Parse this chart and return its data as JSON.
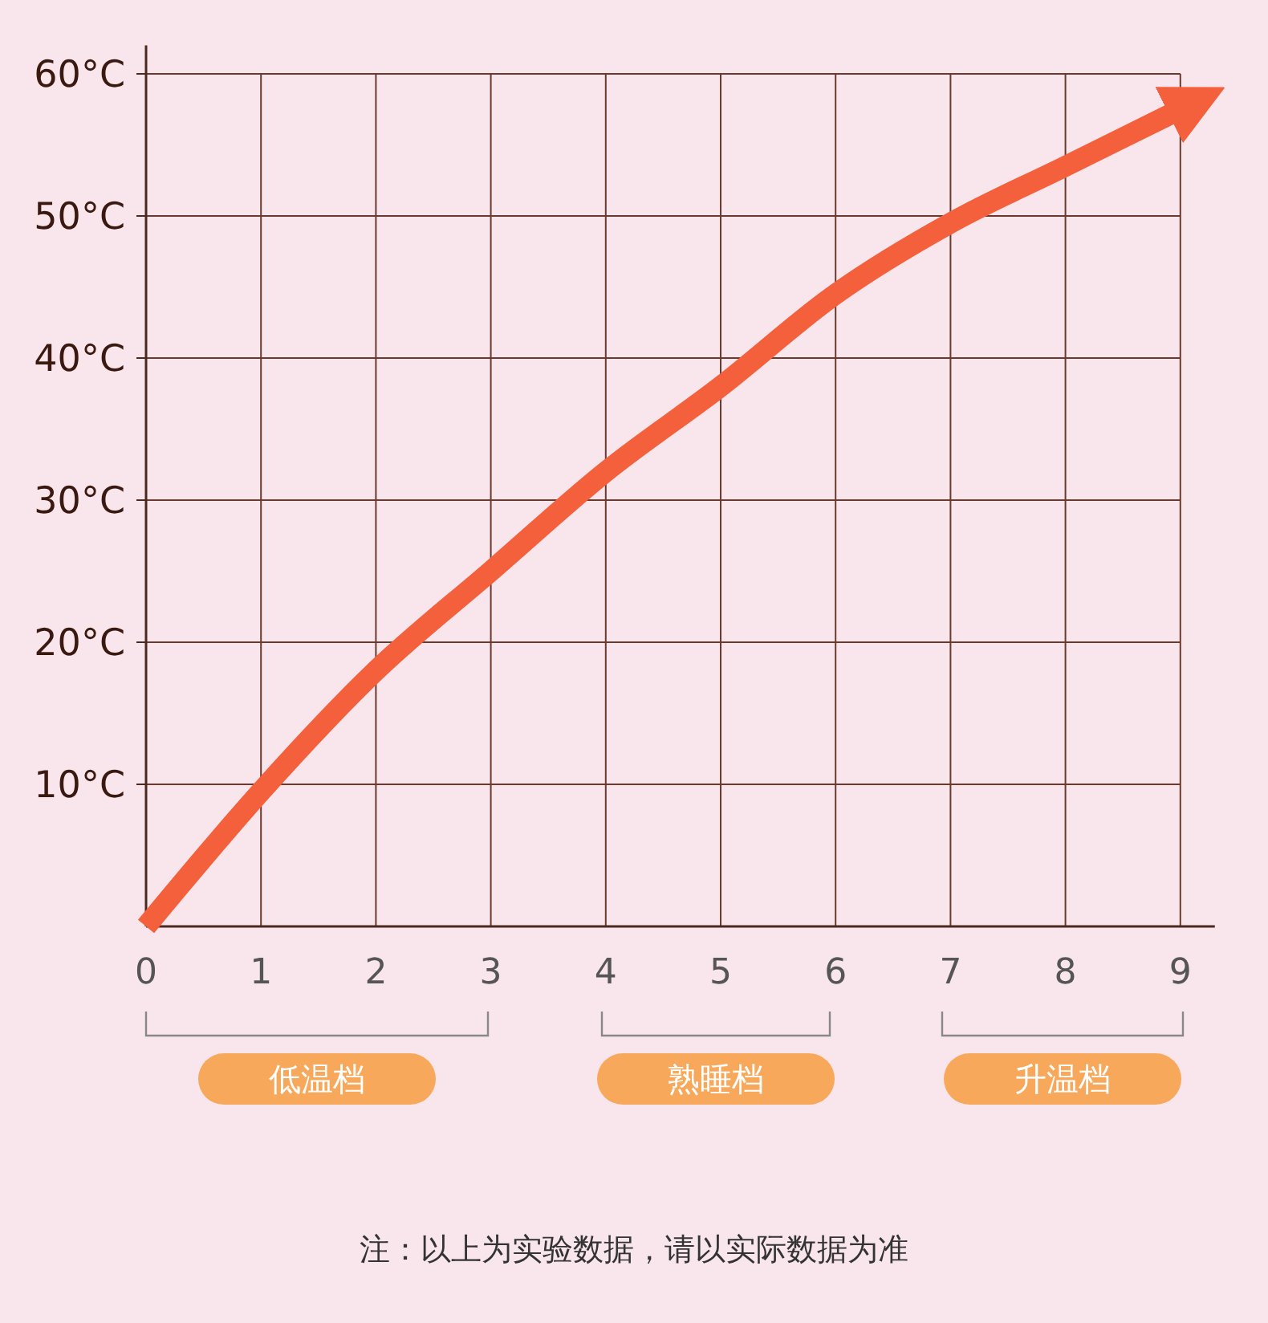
{
  "chart_data": {
    "type": "line",
    "x": [
      0,
      1,
      2,
      3,
      4,
      5,
      6,
      7,
      8,
      9
    ],
    "series": [
      {
        "color": "#f5603c",
        "values": [
          0,
          9.5,
          18,
          25,
          32,
          38,
          44.5,
          49.5,
          53.5,
          57.5
        ]
      }
    ],
    "xlim": [
      0,
      9.3
    ],
    "xticks": [
      0,
      1,
      2,
      3,
      4,
      5,
      6,
      7,
      8,
      9
    ],
    "ylim": [
      0,
      62
    ],
    "yticks": [
      {
        "value": 10,
        "label": "10°C"
      },
      {
        "value": 20,
        "label": "20°C"
      },
      {
        "value": 30,
        "label": "30°C"
      },
      {
        "value": 40,
        "label": "40°C"
      },
      {
        "value": 50,
        "label": "50°C"
      },
      {
        "value": 60,
        "label": "60°C"
      }
    ],
    "grid": true,
    "marker": "none",
    "line_style": "solid",
    "annotations": [
      "低温档",
      "熟睡档",
      "升温档",
      "注：以上为实验数据，请以实际数据为准"
    ]
  }
}
